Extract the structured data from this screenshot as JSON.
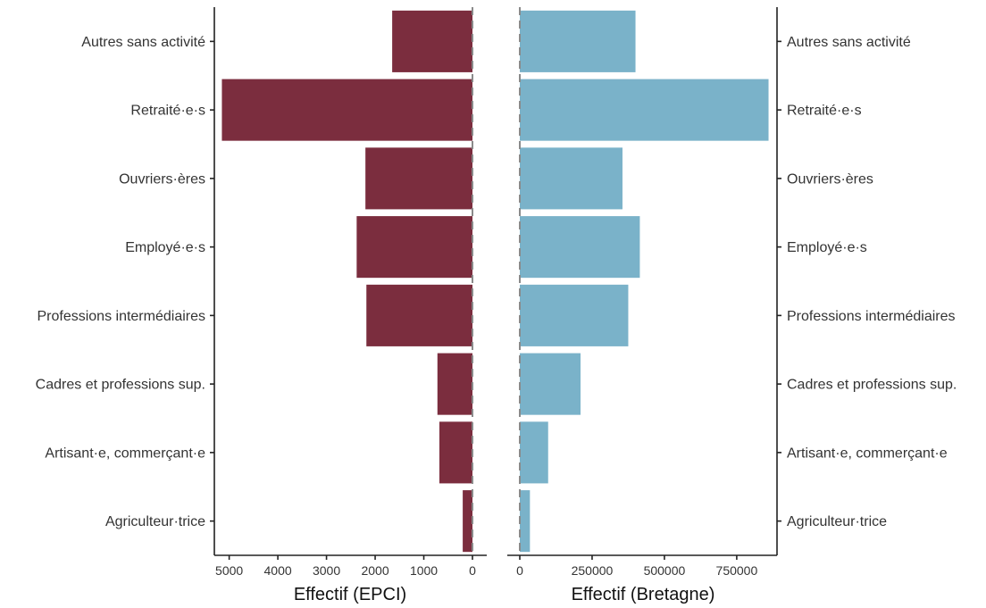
{
  "chart_data": [
    {
      "type": "bar",
      "orientation": "horizontal",
      "direction": "reversed",
      "xlabel": "Effectif (EPCI)",
      "categories": [
        "Autres sans activité",
        "Retraité·e·s",
        "Ouvriers·ères",
        "Employé·e·s",
        "Professions intermédiaires",
        "Cadres et professions sup.",
        "Artisant·e, commerçant·e",
        "Agriculteur·trice"
      ],
      "values": [
        1650,
        5150,
        2200,
        2380,
        2180,
        720,
        680,
        200
      ],
      "xlim": [
        5250,
        0
      ],
      "ticks": [
        5000,
        4000,
        3000,
        2000,
        1000,
        0
      ],
      "tick_labels": [
        "5000",
        "4000",
        "3000",
        "2000",
        "1000",
        "0"
      ],
      "color": "#7b2d3e",
      "reference_line": 0,
      "grid": false
    },
    {
      "type": "bar",
      "orientation": "horizontal",
      "xlabel": "Effectif (Bretagne)",
      "categories": [
        "Autres sans activité",
        "Retraité·e·s",
        "Ouvriers·ères",
        "Employé·e·s",
        "Professions intermédiaires",
        "Cadres et professions sup.",
        "Artisant·e, commerçant·e",
        "Agriculteur·trice"
      ],
      "values": [
        400000,
        860000,
        355000,
        415000,
        375000,
        210000,
        98000,
        35000
      ],
      "xlim": [
        0,
        880000
      ],
      "ticks": [
        0,
        250000,
        500000,
        750000
      ],
      "tick_labels": [
        "0",
        "250000",
        "500000",
        "750000"
      ],
      "color": "#7ab2c9",
      "reference_line": 0,
      "grid": false
    }
  ]
}
